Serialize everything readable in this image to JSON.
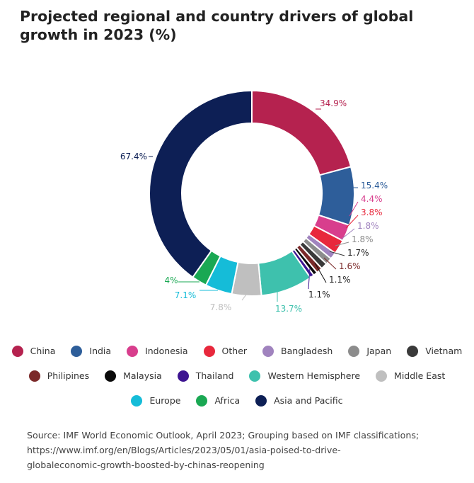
{
  "title": "Projected regional and country drivers of global growth in 2023 (%)",
  "source": {
    "line1": "Source: IMF World Economic Outlook, April 2023; Grouping based on IMF classifications;",
    "line2": "https://www.imf.org/en/Blogs/Articles/2023/05/01/asia-poised-to-drive-",
    "line3": "globaleconomic-growth-boosted-by-chinas-reopening"
  },
  "chart_data": {
    "type": "donut",
    "title": "Projected regional and country drivers of global growth in 2023 (%)",
    "slices": [
      {
        "name": "China",
        "value": 34.9,
        "label": "34.9%",
        "color": "#b5224f"
      },
      {
        "name": "India",
        "value": 15.4,
        "label": "15.4%",
        "color": "#2e5e9a"
      },
      {
        "name": "Indonesia",
        "value": 4.4,
        "label": "4.4%",
        "color": "#d83e8d"
      },
      {
        "name": "Other",
        "value": 3.8,
        "label": "3.8%",
        "color": "#e8283c"
      },
      {
        "name": "Bangladesh",
        "value": 1.8,
        "label": "1.8%",
        "color": "#a083be"
      },
      {
        "name": "Japan",
        "value": 1.8,
        "label": "1.8%",
        "color": "#8c8c8c"
      },
      {
        "name": "Vietnam",
        "value": 1.7,
        "label": "1.7%",
        "color": "#3a3a3a"
      },
      {
        "name": "Philipines",
        "value": 1.6,
        "label": "1.6%",
        "color": "#7b2a2a"
      },
      {
        "name": "Malaysia",
        "value": 1.1,
        "label": "1.1%",
        "color": "#0a0a0a"
      },
      {
        "name": "Thailand",
        "value": 1.1,
        "label": "1.1%",
        "color": "#3d1491"
      },
      {
        "name": "Western Hemisphere",
        "value": 13.7,
        "label": "13.7%",
        "color": "#3ec1ad"
      },
      {
        "name": "Middle East",
        "value": 7.8,
        "label": "7.8%",
        "color": "#bfbfbf"
      },
      {
        "name": "Europe",
        "value": 7.1,
        "label": "7.1%",
        "color": "#15bcd8"
      },
      {
        "name": "Africa",
        "value": 4.0,
        "label": "4%",
        "color": "#1aa853"
      },
      {
        "name": "Asia and Pacific",
        "value": 67.4,
        "label": "67.4%",
        "color": "#0d1f55"
      }
    ],
    "legend": {
      "placement": "bottom",
      "rows": [
        [
          "China",
          "India",
          "Indonesia",
          "Other",
          "Bangladesh",
          "Japan",
          "Vietnam"
        ],
        [
          "Philipines",
          "Malaysia",
          "Thailand",
          "Western Hemisphere",
          "Middle East"
        ],
        [
          "Europe",
          "Africa",
          "Asia and Pacific"
        ]
      ]
    }
  }
}
